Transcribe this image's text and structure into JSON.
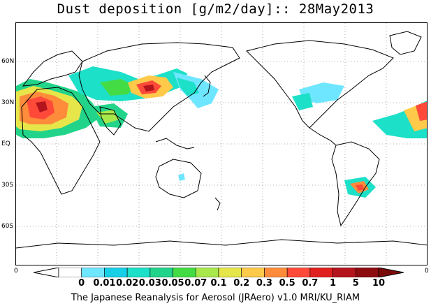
{
  "title": "Dust deposition [g/m2/day]:: 28May2013",
  "lat_labels": [
    "60N",
    "30N",
    "EQ",
    "30S",
    "60S"
  ],
  "edge_labels": {
    "left": "0",
    "right": "0"
  },
  "colorbar": {
    "ticks": [
      "0",
      "0.01",
      "0.02",
      "0.03",
      "0.05",
      "0.07",
      "0.1",
      "0.2",
      "0.3",
      "0.5",
      "0.7",
      "1",
      "5",
      "10"
    ],
    "colors": [
      "#ffffff",
      "#ffffff",
      "#6fe6ff",
      "#18cfe8",
      "#1de0c8",
      "#22d48a",
      "#44dc44",
      "#a8e84a",
      "#e6e64a",
      "#ffc94a",
      "#ff8c3a",
      "#ff4a3a",
      "#e0201e",
      "#b4141c",
      "#8c0c10",
      "#7a0a0a"
    ]
  },
  "footer": "The Japanese Reanalysis for Aerosol (JRAero) v1.0 MRI/KU_RIAM",
  "legend_icons": [
    "arrow-left-icon",
    "arrow-right-icon"
  ]
}
